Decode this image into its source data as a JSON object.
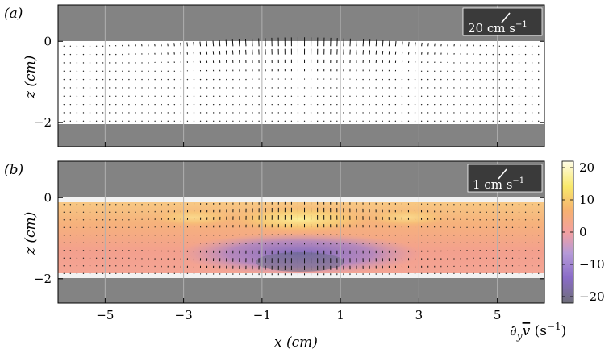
{
  "figure": {
    "panel_a_label": "(a)",
    "panel_b_label": "(b)",
    "scale_a": "20 cm s",
    "scale_b": "1 cm s",
    "scale_exp": "−1",
    "zlabel": "z (cm)",
    "xlabel": "x (cm)",
    "colorbar_label": "∂yv̄ (s−1)",
    "colorbar_label_main": "∂",
    "colorbar_label_sub": "y",
    "colorbar_label_var": "v",
    "colorbar_label_unit": " (s",
    "colorbar_label_exp": "−1",
    "colorbar_label_close": ")"
  },
  "chart_data": [
    {
      "type": "quiver",
      "panel": "a",
      "ylabel": "z (cm)",
      "yticks": [
        "0",
        "−2"
      ],
      "xlim": [
        -6.2,
        6.2
      ],
      "ylim": [
        -2.6,
        0.9
      ],
      "fluid_region_z": [
        -2.05,
        0.0
      ],
      "vertical_gridlines_x": [
        -5,
        -3,
        -1,
        1,
        3,
        5
      ],
      "reference_vector": "20 cm s−1"
    },
    {
      "type": "heatmap",
      "panel": "b",
      "ylabel": "z (cm)",
      "xlabel": "x (cm)",
      "yticks": [
        "0",
        "−2"
      ],
      "xticks": [
        "−5",
        "−3",
        "−1",
        "1",
        "3",
        "5"
      ],
      "xlim": [
        -6.2,
        6.2
      ],
      "ylim": [
        -2.6,
        0.9
      ],
      "fluid_region_z": [
        -1.95,
        -0.05
      ],
      "reference_vector": "1 cm s−1",
      "colorbar": {
        "label": "∂yv̄ (s−1)",
        "ticks": [
          "20",
          "10",
          "0",
          "−10",
          "−20"
        ],
        "range": [
          -22,
          22
        ],
        "colors": [
          "#6e6e78",
          "#8a6cc8",
          "#b59ad8",
          "#f3a0a0",
          "#f6b070",
          "#f8e86a",
          "#fffde8"
        ]
      }
    }
  ]
}
